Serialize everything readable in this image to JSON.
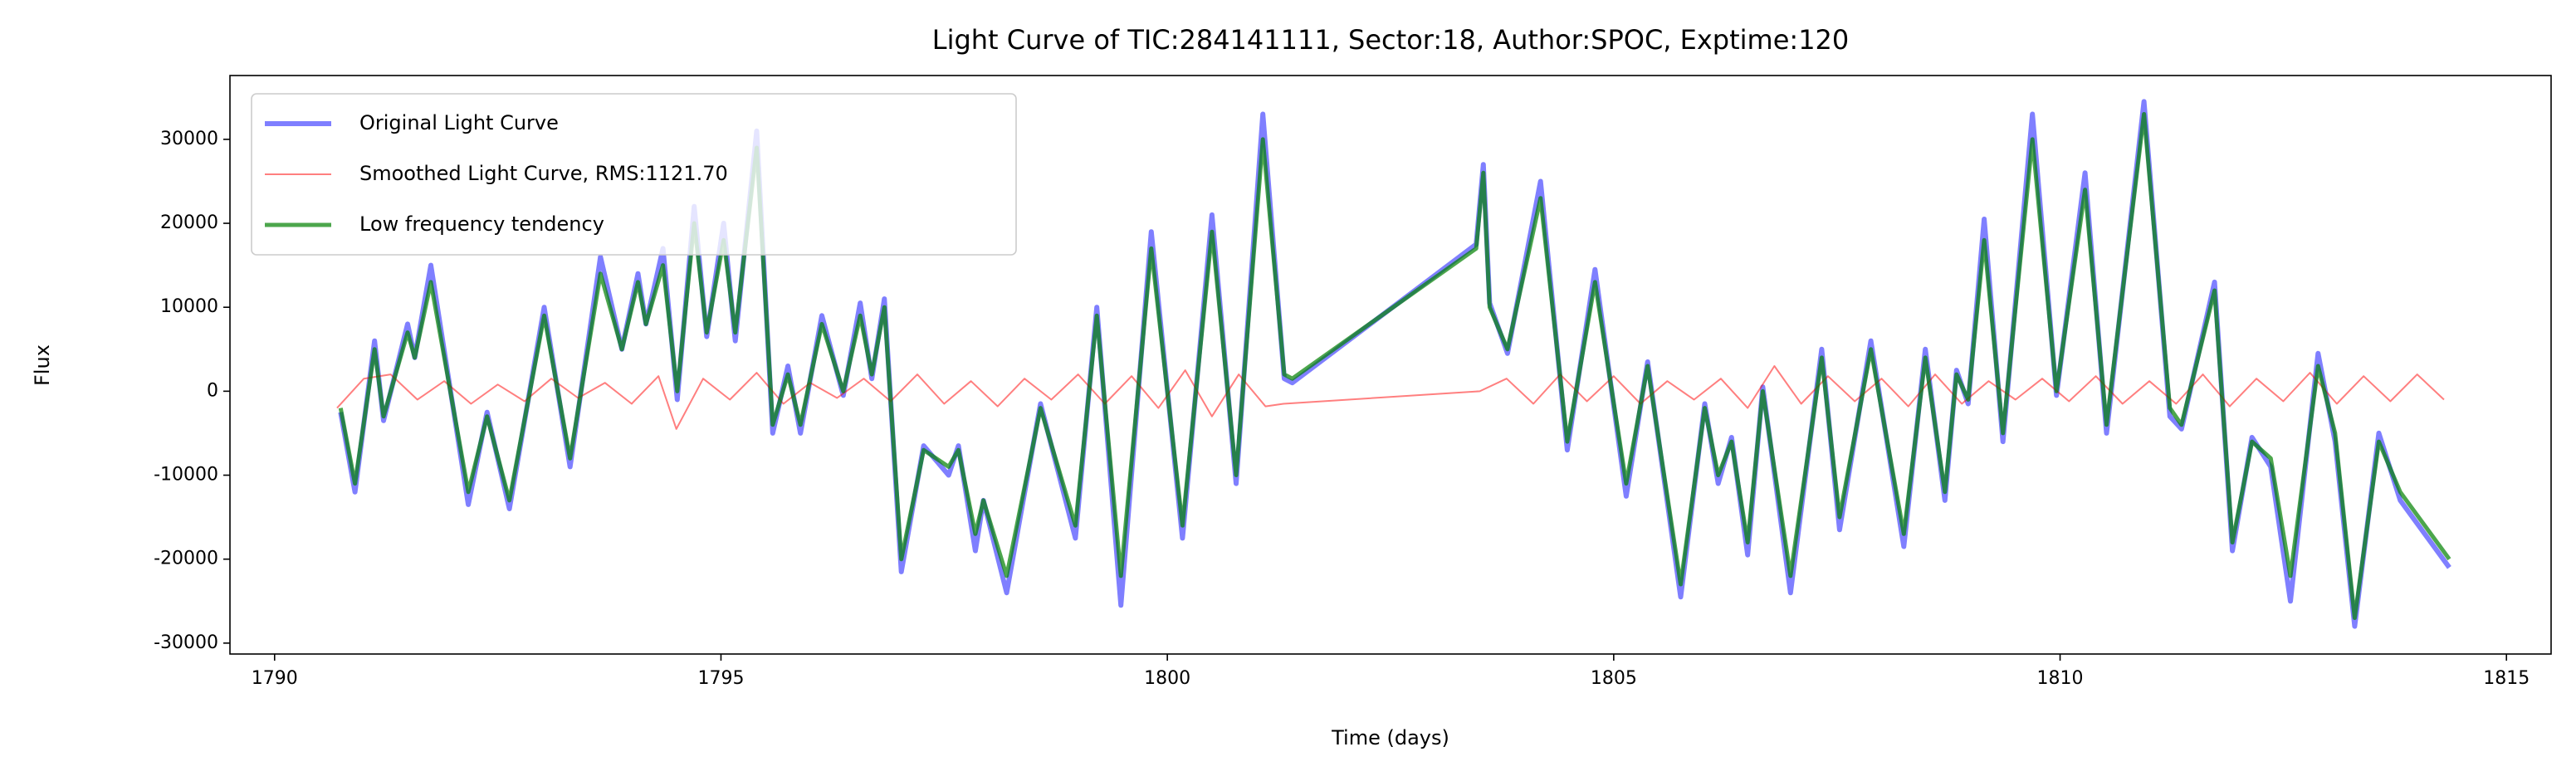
{
  "chart_data": {
    "type": "line",
    "title": "Light Curve of TIC:284141111, Sector:18, Author:SPOC, Exptime:120",
    "x_label": "Time (days)",
    "y_label": "Flux",
    "xlim": [
      1789.5,
      1815.5
    ],
    "ylim": [
      -31300,
      37600
    ],
    "xticks": [
      1790,
      1795,
      1800,
      1805,
      1810,
      1815
    ],
    "yticks": [
      -30000,
      -20000,
      -10000,
      0,
      10000,
      20000,
      30000
    ],
    "legend": "upper left",
    "grid": false,
    "series": [
      {
        "name": "Original Light Curve",
        "color": "#0000ff",
        "opacity": 0.5,
        "width": 6,
        "x": [
          1790.74,
          1790.9,
          1791.12,
          1791.22,
          1791.49,
          1791.57,
          1791.75,
          1792.17,
          1792.38,
          1792.63,
          1793.02,
          1793.31,
          1793.65,
          1793.89,
          1794.07,
          1794.16,
          1794.35,
          1794.51,
          1794.7,
          1794.84,
          1795.03,
          1795.16,
          1795.4,
          1795.58,
          1795.75,
          1795.89,
          1796.13,
          1796.37,
          1796.56,
          1796.69,
          1796.83,
          1797.02,
          1797.27,
          1797.55,
          1797.66,
          1797.85,
          1797.94,
          1798.2,
          1798.58,
          1798.97,
          1799.21,
          1799.48,
          1799.82,
          1800.17,
          1800.5,
          1800.77,
          1801.07,
          1801.31,
          1801.4,
          1803.46,
          1803.54,
          1803.61,
          1803.81,
          1804.18,
          1804.48,
          1804.79,
          1805.14,
          1805.38,
          1805.75,
          1806.02,
          1806.17,
          1806.32,
          1806.5,
          1806.67,
          1806.98,
          1807.33,
          1807.53,
          1807.88,
          1808.25,
          1808.49,
          1808.71,
          1808.84,
          1808.97,
          1809.15,
          1809.36,
          1809.69,
          1809.96,
          1810.28,
          1810.52,
          1810.94,
          1811.23,
          1811.36,
          1811.73,
          1811.93,
          1812.15,
          1812.36,
          1812.58,
          1812.89,
          1813.08,
          1813.3,
          1813.57,
          1813.81,
          1814.36
        ],
        "values": [
          -2500,
          -12000,
          6000,
          -3500,
          8000,
          4000,
          15000,
          -13500,
          -2500,
          -14000,
          10000,
          -9000,
          16000,
          5000,
          14000,
          8000,
          17000,
          -1000,
          22000,
          6500,
          20000,
          6000,
          31000,
          -5000,
          3000,
          -5000,
          9000,
          -500,
          10500,
          1500,
          11000,
          -21500,
          -6500,
          -10000,
          -6500,
          -19000,
          -13000,
          -24000,
          -1500,
          -17500,
          10000,
          -25500,
          19000,
          -17500,
          21000,
          -11000,
          33000,
          1500,
          1000,
          17500,
          27000,
          10500,
          4500,
          25000,
          -7000,
          14500,
          -12500,
          3500,
          -24500,
          -1500,
          -11000,
          -5500,
          -19500,
          500,
          -24000,
          5000,
          -16500,
          6000,
          -18500,
          5000,
          -13000,
          2500,
          -1500,
          20500,
          -6000,
          33000,
          -500,
          26000,
          -5000,
          34500,
          -3000,
          -4500,
          13000,
          -19000,
          -5500,
          -9000,
          -25000,
          4500,
          -6000,
          -28000,
          -5000,
          -13000,
          -21000
        ]
      },
      {
        "name": "Smoothed Light Curve, RMS:1121.70",
        "color": "#ff0000",
        "opacity": 0.5,
        "width": 2,
        "x": [
          1790.7,
          1791.0,
          1791.3,
          1791.6,
          1791.9,
          1792.2,
          1792.5,
          1792.8,
          1793.1,
          1793.4,
          1793.7,
          1794.0,
          1794.3,
          1794.5,
          1794.8,
          1795.1,
          1795.4,
          1795.7,
          1796.0,
          1796.3,
          1796.6,
          1796.9,
          1797.2,
          1797.5,
          1797.8,
          1798.1,
          1798.4,
          1798.7,
          1799.0,
          1799.3,
          1799.6,
          1799.9,
          1800.2,
          1800.5,
          1800.8,
          1801.1,
          1801.3,
          1803.5,
          1803.8,
          1804.1,
          1804.4,
          1804.7,
          1805.0,
          1805.3,
          1805.6,
          1805.9,
          1806.2,
          1806.5,
          1806.8,
          1807.1,
          1807.4,
          1807.7,
          1808.0,
          1808.3,
          1808.6,
          1808.9,
          1809.2,
          1809.5,
          1809.8,
          1810.1,
          1810.4,
          1810.7,
          1811.0,
          1811.3,
          1811.6,
          1811.9,
          1812.2,
          1812.5,
          1812.8,
          1813.1,
          1813.4,
          1813.7,
          1814.0,
          1814.3
        ],
        "values": [
          -2000,
          1500,
          2000,
          -1000,
          1200,
          -1500,
          800,
          -1200,
          1500,
          -800,
          1000,
          -1500,
          1800,
          -4500,
          1500,
          -1000,
          2200,
          -1500,
          1000,
          -800,
          1500,
          -1200,
          2000,
          -1500,
          1200,
          -1800,
          1500,
          -1000,
          2000,
          -1500,
          1800,
          -2000,
          2500,
          -3000,
          2000,
          -1800,
          -1500,
          0,
          1500,
          -1500,
          2000,
          -1200,
          1800,
          -1500,
          1200,
          -1000,
          1500,
          -2000,
          3000,
          -1500,
          1800,
          -1200,
          1500,
          -1800,
          2000,
          -1500,
          1200,
          -1000,
          1500,
          -1200,
          1800,
          -1500,
          1200,
          -1500,
          2000,
          -1800,
          1500,
          -1200,
          2200,
          -1500,
          1800,
          -1200,
          2000,
          -1000
        ]
      },
      {
        "name": "Low frequency tendency",
        "color": "#008000",
        "opacity": 0.7,
        "width": 5,
        "x": [
          1790.74,
          1790.9,
          1791.12,
          1791.22,
          1791.49,
          1791.57,
          1791.75,
          1792.17,
          1792.38,
          1792.63,
          1793.02,
          1793.31,
          1793.65,
          1793.89,
          1794.07,
          1794.16,
          1794.35,
          1794.51,
          1794.7,
          1794.84,
          1795.03,
          1795.16,
          1795.4,
          1795.58,
          1795.75,
          1795.89,
          1796.13,
          1796.37,
          1796.56,
          1796.69,
          1796.83,
          1797.02,
          1797.27,
          1797.55,
          1797.66,
          1797.85,
          1797.94,
          1798.2,
          1798.58,
          1798.97,
          1799.21,
          1799.48,
          1799.82,
          1800.17,
          1800.5,
          1800.77,
          1801.07,
          1801.31,
          1801.4,
          1803.46,
          1803.54,
          1803.61,
          1803.81,
          1804.18,
          1804.48,
          1804.79,
          1805.14,
          1805.38,
          1805.75,
          1806.02,
          1806.17,
          1806.32,
          1806.5,
          1806.67,
          1806.98,
          1807.33,
          1807.53,
          1807.88,
          1808.25,
          1808.49,
          1808.71,
          1808.84,
          1808.97,
          1809.15,
          1809.36,
          1809.69,
          1809.96,
          1810.28,
          1810.52,
          1810.94,
          1811.23,
          1811.36,
          1811.73,
          1811.93,
          1812.15,
          1812.36,
          1812.58,
          1812.89,
          1813.08,
          1813.3,
          1813.57,
          1813.81,
          1814.36
        ],
        "values": [
          -2000,
          -11000,
          5000,
          -3000,
          7000,
          4000,
          13000,
          -12000,
          -3000,
          -13000,
          9000,
          -8000,
          14000,
          5000,
          13000,
          8000,
          15000,
          0,
          20000,
          7000,
          18000,
          7000,
          29000,
          -4000,
          2000,
          -4000,
          8000,
          0,
          9000,
          2000,
          10000,
          -20000,
          -7000,
          -9000,
          -7000,
          -17000,
          -13000,
          -22000,
          -2000,
          -16000,
          9000,
          -22000,
          17000,
          -16000,
          19000,
          -10000,
          30000,
          2000,
          1500,
          17000,
          26000,
          10000,
          5000,
          23000,
          -6000,
          13000,
          -11000,
          3000,
          -23000,
          -2000,
          -10000,
          -6000,
          -18000,
          0,
          -22000,
          4000,
          -15000,
          5000,
          -17000,
          4000,
          -12000,
          2000,
          -1000,
          18000,
          -5000,
          30000,
          0,
          24000,
          -4000,
          33000,
          -2000,
          -4000,
          12000,
          -18000,
          -6000,
          -8000,
          -22000,
          3000,
          -5000,
          -27000,
          -6000,
          -12000,
          -20000
        ]
      }
    ]
  }
}
